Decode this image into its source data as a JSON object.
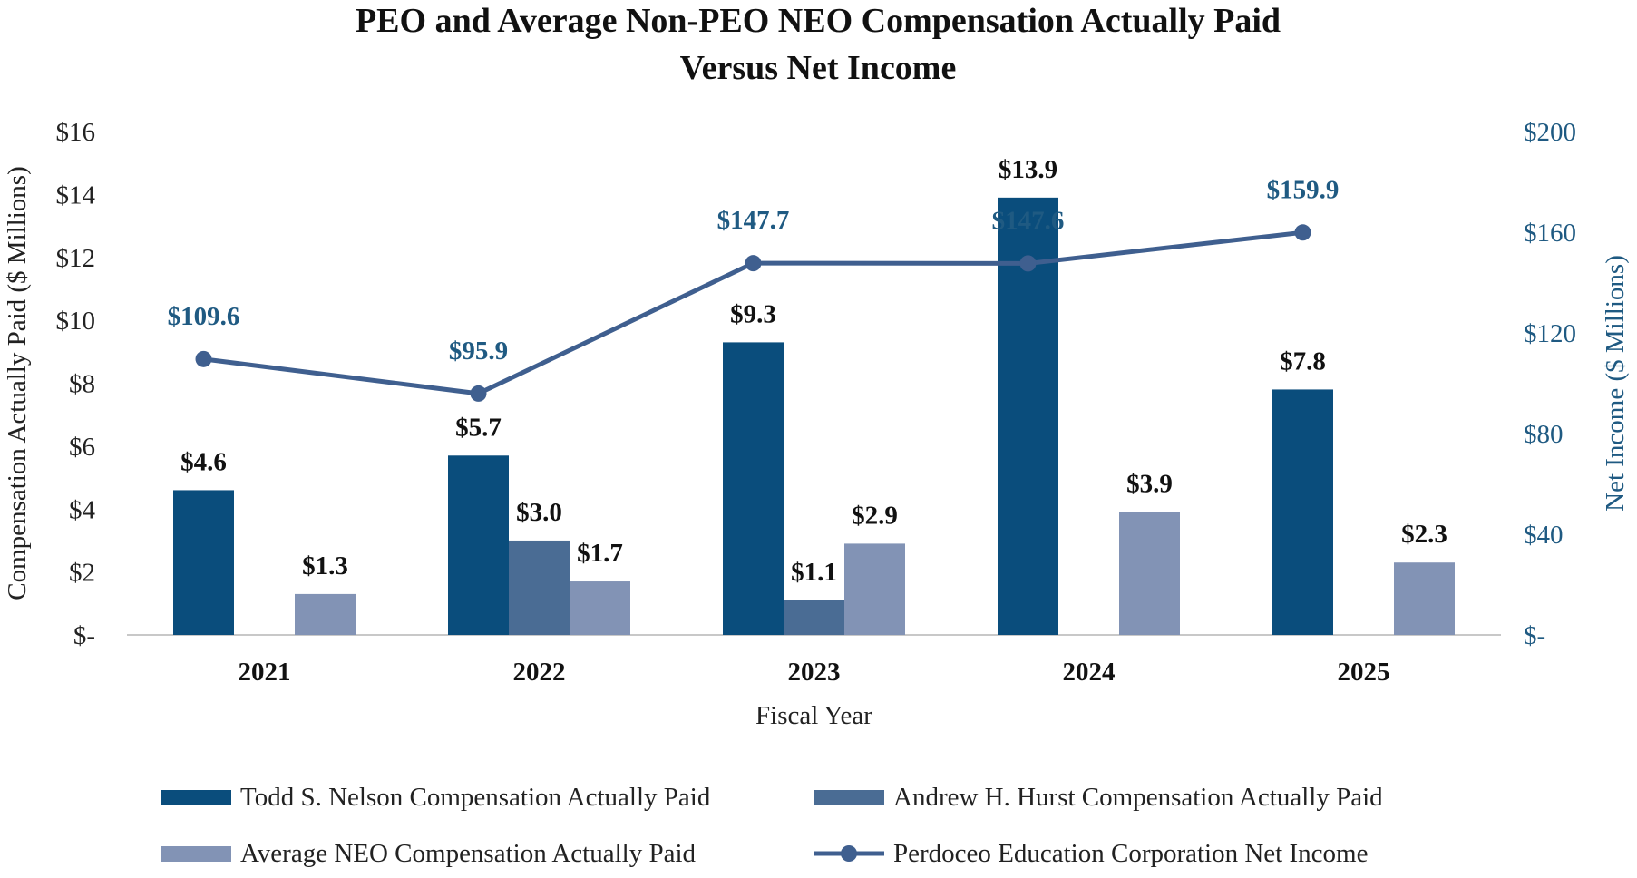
{
  "chart_data": {
    "type": "bar",
    "title_lines": [
      "PEO and Average Non-PEO NEO Compensation Actually Paid",
      "Versus Net Income"
    ],
    "xlabel": "Fiscal Year",
    "ylabel": "Compensation Actually Paid ($ Millions)",
    "y2label": "Net Income ($ Millions)",
    "categories": [
      "2021",
      "2022",
      "2023",
      "2024",
      "2025"
    ],
    "ylim": [
      0,
      16
    ],
    "y_ticks": [
      0,
      2,
      4,
      6,
      8,
      10,
      12,
      14,
      16
    ],
    "y_tick_labels": [
      "$-",
      "$2",
      "$4",
      "$6",
      "$8",
      "$10",
      "$12",
      "$14",
      "$16"
    ],
    "y2lim": [
      0,
      200
    ],
    "y2_ticks": [
      0,
      40,
      80,
      120,
      160,
      200
    ],
    "y2_tick_labels": [
      "$-",
      "$40",
      "$80",
      "$120",
      "$160",
      "$200"
    ],
    "series": [
      {
        "name": "Todd S. Nelson Compensation Actually Paid",
        "kind": "bar",
        "slot": 0,
        "color": "#0a4d7c",
        "values": [
          4.6,
          5.7,
          9.3,
          13.9,
          7.8
        ],
        "labels": [
          "$4.6",
          "$5.7",
          "$9.3",
          "$13.9",
          "$7.8"
        ]
      },
      {
        "name": "Andrew H. Hurst Compensation Actually Paid",
        "kind": "bar",
        "slot": 1,
        "color": "#4a6c94",
        "values": [
          null,
          3.0,
          1.1,
          null,
          null
        ],
        "labels": [
          null,
          "$3.0",
          "$1.1",
          null,
          null
        ]
      },
      {
        "name": "Average NEO Compensation Actually Paid",
        "kind": "bar",
        "slot": 2,
        "color": "#8293b5",
        "values": [
          1.3,
          1.7,
          2.9,
          3.9,
          2.3
        ],
        "labels": [
          "$1.3",
          "$1.7",
          "$2.9",
          "$3.9",
          "$2.3"
        ]
      },
      {
        "name": "Perdoceo Education Corporation Net Income",
        "kind": "line",
        "axis": "secondary",
        "color": "#3f5f8f",
        "label_color": "#1f5a82",
        "values": [
          109.6,
          95.9,
          147.7,
          147.6,
          159.9
        ],
        "labels": [
          "$109.6",
          "$95.9",
          "$147.7",
          "$147.6",
          "$159.9"
        ]
      }
    ],
    "colors": {
      "left_axis_text": "#222222",
      "right_axis_text": "#1f5a82",
      "baseline": "#c8c8c8"
    }
  }
}
